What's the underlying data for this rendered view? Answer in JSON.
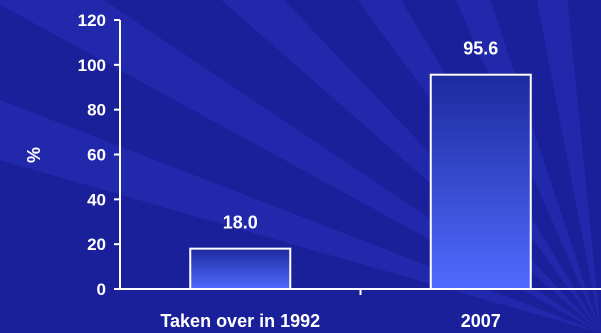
{
  "chart_data": {
    "type": "bar",
    "categories": [
      "Taken over in 1992",
      "2007"
    ],
    "values": [
      18.0,
      95.6
    ],
    "data_labels": [
      "18.0",
      "95.6"
    ],
    "title": "",
    "xlabel": "",
    "ylabel": "%",
    "ylim": [
      0,
      120
    ],
    "yticks": [
      0,
      20,
      40,
      60,
      80,
      100,
      120
    ],
    "ytick_labels": [
      "0",
      "20",
      "40",
      "60",
      "80",
      "100",
      "120"
    ],
    "grid": false,
    "legend": "none"
  },
  "colors": {
    "background": "#1a1f9a",
    "background_ray": "#2a33c0",
    "bar_top": "#1e2a9e",
    "bar_bottom": "#4f6bff",
    "bar_border": "#ffffff",
    "axis": "#ffffff",
    "text": "#ffffff"
  }
}
